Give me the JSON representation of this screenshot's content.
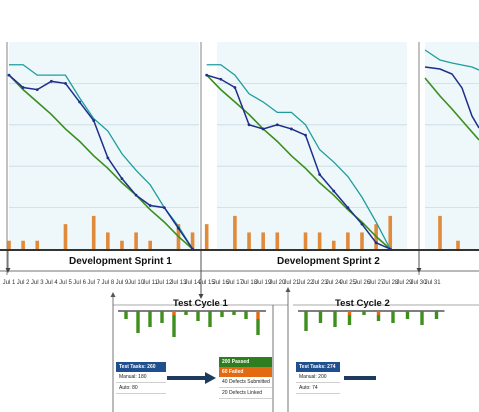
{
  "sprints": [
    {
      "label": "Development Sprint 1"
    },
    {
      "label": "Development Sprint 2"
    }
  ],
  "test_cycles": [
    {
      "label": "Test Cycle 1"
    },
    {
      "label": "Test Cycle 2"
    }
  ],
  "dates": [
    "Jul 1",
    "Jul 2",
    "Jul 3",
    "Jul 4",
    "Jul 5",
    "Jul 6",
    "Jul 7",
    "Jul 8",
    "Jul 9",
    "Jul 10",
    "Jul 11",
    "Jul 12",
    "Jul 13",
    "Jul 14",
    "Jul 15",
    "Jul 16",
    "Jul 17",
    "Jul 18",
    "Jul 19",
    "Jul 20",
    "Jul 21",
    "Jul 22",
    "Jul 23",
    "Jul 24",
    "Jul 25",
    "Jul 26",
    "Jul 27",
    "Jul 28",
    "Jul 29",
    "Jul 30",
    "Jul 31"
  ],
  "cycle1_summary": {
    "tasks": "Test Tasks: 260",
    "manual": "Manual: 180",
    "auto": "Auto: 80"
  },
  "cycle1_results": {
    "passed": "200 Passed",
    "failed": "60 Failed",
    "submitted": "40 Defects Submitted",
    "linked": "20 Defects Linked"
  },
  "cycle2_summary": {
    "tasks": "Test Tasks: 274",
    "manual": "Manual: 200",
    "auto": "Auto: 74"
  },
  "colors": {
    "ideal": "#3a8f1c",
    "actual": "#1d2f8a",
    "scope": "#1f9d9d",
    "bar": "#e08a3c",
    "pass": "#3f8f1e",
    "fail": "#e36a10",
    "arrow": "#1f3a5f",
    "grid": "#c9dbe3",
    "bg": "#eef7fa"
  },
  "chart_data": [
    {
      "type": "line",
      "title": "Development Sprint 1",
      "x": [
        "Jul 1",
        "Jul 2",
        "Jul 3",
        "Jul 4",
        "Jul 5",
        "Jul 6",
        "Jul 7",
        "Jul 8",
        "Jul 9",
        "Jul 10",
        "Jul 11",
        "Jul 12",
        "Jul 13",
        "Jul 14"
      ],
      "ylim": [
        0,
        100
      ],
      "series": [
        {
          "values": [
            84,
            78,
            77,
            81,
            80,
            71,
            62,
            44,
            34,
            26,
            21,
            20,
            10,
            0
          ]
        },
        {
          "values": [
            89,
            89,
            84,
            84,
            84,
            73,
            63,
            57,
            46,
            38,
            31,
            20,
            11,
            0
          ]
        },
        {
          "values": [
            84,
            77,
            71,
            65,
            58,
            52,
            45,
            39,
            32,
            26,
            19,
            13,
            6,
            0
          ]
        },
        {
          "type": "bar",
          "values": [
            4,
            4,
            4,
            0,
            12,
            0,
            16,
            8,
            4,
            8,
            4,
            0,
            12,
            8
          ]
        }
      ]
    },
    {
      "type": "line",
      "title": "Development Sprint 2",
      "x": [
        "Jul 15",
        "Jul 16",
        "Jul 17",
        "Jul 18",
        "Jul 19",
        "Jul 20",
        "Jul 21",
        "Jul 22",
        "Jul 23",
        "Jul 24",
        "Jul 25",
        "Jul 26",
        "Jul 27",
        "Jul 28"
      ],
      "ylim": [
        0,
        100
      ],
      "series": [
        {
          "values": [
            84,
            82,
            78,
            60,
            58,
            60,
            58,
            55,
            36,
            28,
            20,
            12,
            3,
            0
          ]
        },
        {
          "values": [
            89,
            89,
            84,
            75,
            71,
            66,
            66,
            60,
            48,
            42,
            35,
            25,
            13,
            0
          ]
        },
        {
          "values": [
            84,
            77,
            71,
            65,
            58,
            52,
            45,
            39,
            32,
            26,
            19,
            13,
            6,
            0
          ]
        },
        {
          "type": "bar",
          "values": [
            12,
            0,
            16,
            8,
            8,
            8,
            0,
            8,
            8,
            4,
            8,
            8,
            12,
            16
          ]
        }
      ]
    },
    {
      "type": "bar",
      "title": "Test Cycle 1",
      "x": [
        "Jul 7",
        "Jul 8",
        "Jul 9",
        "Jul 10",
        "Jul 11",
        "Jul 12",
        "Jul 13",
        "Jul 14",
        "Jul 15",
        "Jul 16",
        "Jul 17",
        "Jul 18"
      ],
      "series": [
        {
          "name": "Passed",
          "values": [
            -8,
            -22,
            -16,
            -12,
            -22,
            -4,
            -10,
            -16,
            -6,
            -4,
            -8,
            -16
          ]
        },
        {
          "name": "Failed",
          "values": [
            0,
            0,
            0,
            0,
            -4,
            0,
            0,
            0,
            0,
            0,
            0,
            -8
          ]
        }
      ]
    },
    {
      "type": "bar",
      "title": "Test Cycle 2",
      "x": [
        "Jul 20",
        "Jul 21",
        "Jul 22",
        "Jul 23",
        "Jul 24",
        "Jul 25",
        "Jul 26",
        "Jul 27",
        "Jul 28",
        "Jul 29"
      ],
      "series": [
        {
          "name": "Passed",
          "values": [
            -20,
            -12,
            -16,
            -10,
            -4,
            -6,
            -12,
            -8,
            -14,
            -8
          ]
        },
        {
          "name": "Failed",
          "values": [
            0,
            0,
            0,
            -4,
            0,
            -4,
            0,
            0,
            0,
            0
          ]
        }
      ]
    }
  ]
}
